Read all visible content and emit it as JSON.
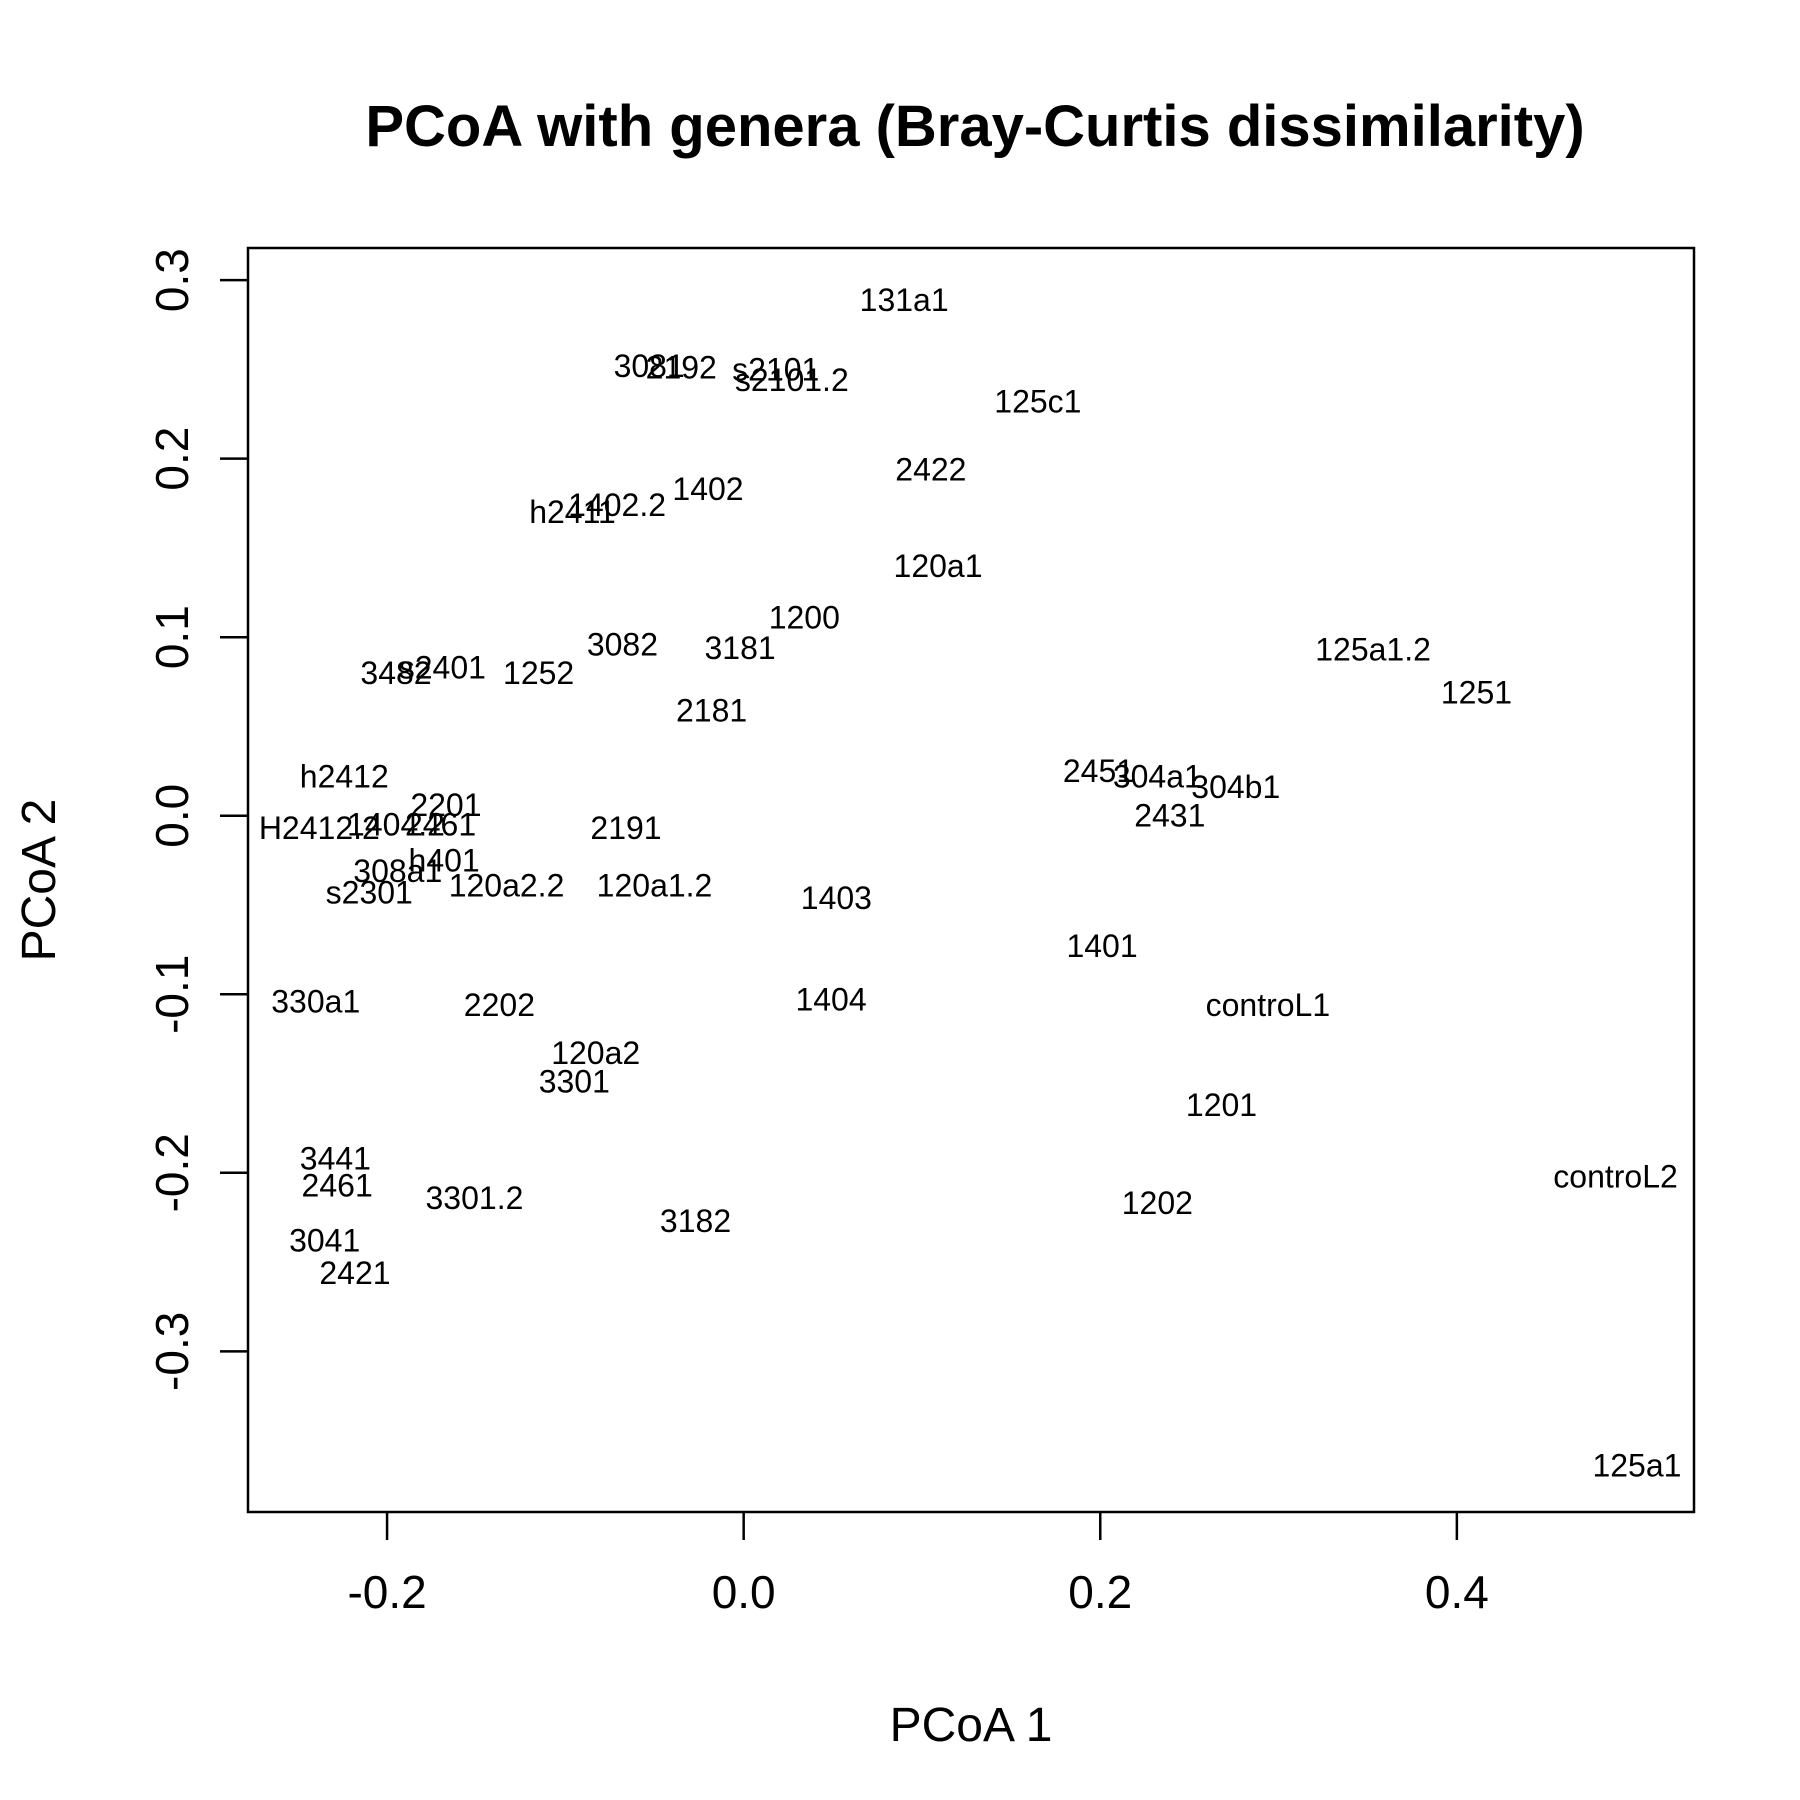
{
  "chart_data": {
    "type": "scatter",
    "title": "PCoA with genera (Bray-Curtis dissimilarity)",
    "xlabel": "PCoA 1",
    "ylabel": "PCoA 2",
    "xlim": [
      -0.278,
      0.533
    ],
    "ylim": [
      -0.39,
      0.318
    ],
    "xticks": [
      -0.2,
      0.0,
      0.2,
      0.4
    ],
    "xtick_labels": [
      "-0.2",
      "0.0",
      "0.2",
      "0.4"
    ],
    "yticks": [
      -0.3,
      -0.2,
      -0.1,
      0.0,
      0.1,
      0.2,
      0.3
    ],
    "ytick_labels": [
      "-0.3",
      "-0.2",
      "-0.1",
      "0.0",
      "0.1",
      "0.2",
      "0.3"
    ],
    "grid": false,
    "legend": "none",
    "marker": "text labels only",
    "points": [
      {
        "label": "131a1",
        "x": 0.09,
        "y": 0.289
      },
      {
        "label": "3081",
        "x": -0.053,
        "y": 0.252
      },
      {
        "label": "2192",
        "x": -0.035,
        "y": 0.251
      },
      {
        "label": "s2101",
        "x": 0.018,
        "y": 0.25
      },
      {
        "label": "s2101.2",
        "x": 0.027,
        "y": 0.244
      },
      {
        "label": "125c1",
        "x": 0.165,
        "y": 0.232
      },
      {
        "label": "2422",
        "x": 0.105,
        "y": 0.194
      },
      {
        "label": "1402",
        "x": -0.02,
        "y": 0.183
      },
      {
        "label": "1402.2",
        "x": -0.071,
        "y": 0.174
      },
      {
        "label": "h2411",
        "x": -0.096,
        "y": 0.17
      },
      {
        "label": "120a1",
        "x": 0.109,
        "y": 0.14
      },
      {
        "label": "1200",
        "x": 0.034,
        "y": 0.111
      },
      {
        "label": "3082",
        "x": -0.068,
        "y": 0.096
      },
      {
        "label": "3181",
        "x": -0.002,
        "y": 0.094
      },
      {
        "label": "125a1.2",
        "x": 0.353,
        "y": 0.093
      },
      {
        "label": "s2401",
        "x": -0.169,
        "y": 0.083
      },
      {
        "label": "3482",
        "x": -0.195,
        "y": 0.08
      },
      {
        "label": "1252",
        "x": -0.115,
        "y": 0.08
      },
      {
        "label": "1251",
        "x": 0.411,
        "y": 0.069
      },
      {
        "label": "2181",
        "x": -0.018,
        "y": 0.059
      },
      {
        "label": "h2412",
        "x": -0.224,
        "y": 0.022
      },
      {
        "label": "2451",
        "x": 0.199,
        "y": 0.025
      },
      {
        "label": "304a1",
        "x": 0.232,
        "y": 0.022
      },
      {
        "label": "304b1",
        "x": 0.276,
        "y": 0.016
      },
      {
        "label": "2201",
        "x": -0.167,
        "y": 0.006
      },
      {
        "label": "2431",
        "x": 0.239,
        "y": 0.0
      },
      {
        "label": "1404.2",
        "x": -0.195,
        "y": -0.005
      },
      {
        "label": "2461",
        "x": -0.17,
        "y": -0.005
      },
      {
        "label": "H2412.2",
        "x": -0.238,
        "y": -0.007
      },
      {
        "label": "2191",
        "x": -0.066,
        "y": -0.007
      },
      {
        "label": "h401",
        "x": -0.168,
        "y": -0.025
      },
      {
        "label": "308a1",
        "x": -0.194,
        "y": -0.031
      },
      {
        "label": "120a2.2",
        "x": -0.133,
        "y": -0.039
      },
      {
        "label": "120a1.2",
        "x": -0.05,
        "y": -0.039
      },
      {
        "label": "s2301",
        "x": -0.21,
        "y": -0.043
      },
      {
        "label": "1403",
        "x": 0.052,
        "y": -0.046
      },
      {
        "label": "1401",
        "x": 0.201,
        "y": -0.073
      },
      {
        "label": "330a1",
        "x": -0.24,
        "y": -0.104
      },
      {
        "label": "1404",
        "x": 0.049,
        "y": -0.103
      },
      {
        "label": "2202",
        "x": -0.137,
        "y": -0.106
      },
      {
        "label": "controL1",
        "x": 0.294,
        "y": -0.106
      },
      {
        "label": "120a2",
        "x": -0.083,
        "y": -0.133
      },
      {
        "label": "3301",
        "x": -0.095,
        "y": -0.149
      },
      {
        "label": "1201",
        "x": 0.268,
        "y": -0.162
      },
      {
        "label": "3441",
        "x": -0.229,
        "y": -0.192
      },
      {
        "label": "controL2",
        "x": 0.489,
        "y": -0.202
      },
      {
        "label": "2461",
        "x": -0.228,
        "y": -0.207
      },
      {
        "label": "3301.2",
        "x": -0.151,
        "y": -0.214
      },
      {
        "label": "1202",
        "x": 0.232,
        "y": -0.217
      },
      {
        "label": "3182",
        "x": -0.027,
        "y": -0.227
      },
      {
        "label": "3041",
        "x": -0.235,
        "y": -0.238
      },
      {
        "label": "2421",
        "x": -0.218,
        "y": -0.256
      },
      {
        "label": "125a1",
        "x": 0.501,
        "y": -0.364
      }
    ]
  }
}
